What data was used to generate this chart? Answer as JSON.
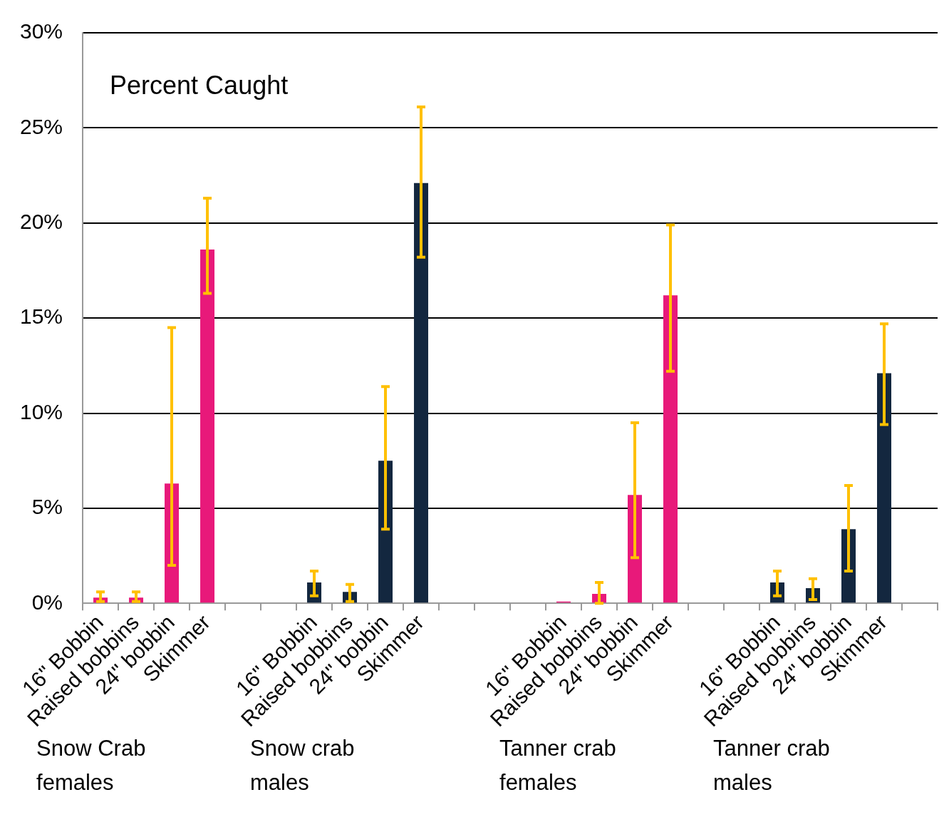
{
  "chart_data": {
    "type": "bar",
    "title": "Percent Caught",
    "categories": [
      "16\" Bobbin",
      "Raised bobbins",
      "24\" bobbin",
      "Skimmer",
      null,
      null,
      "16\" Bobbin",
      "Raised bobbins",
      "24\" bobbin",
      "Skimmer",
      null,
      null,
      null,
      "16\" Bobbin",
      "Raised bobbins",
      "24\" bobbin",
      "Skimmer",
      null,
      null,
      "16\" Bobbin",
      "Raised bobbins",
      "24\" bobbin",
      "Skimmer",
      null
    ],
    "values": [
      0.3,
      0.3,
      6.3,
      18.6,
      null,
      null,
      1.1,
      0.6,
      7.5,
      22.1,
      null,
      null,
      null,
      0.1,
      0.5,
      5.7,
      16.2,
      null,
      null,
      1.1,
      0.8,
      3.9,
      12.1,
      null
    ],
    "colors": [
      "#e8197a",
      "#e8197a",
      "#e8197a",
      "#e8197a",
      null,
      null,
      "#13273f",
      "#13273f",
      "#13273f",
      "#13273f",
      null,
      null,
      null,
      "#e8197a",
      "#e8197a",
      "#e8197a",
      "#e8197a",
      null,
      null,
      "#13273f",
      "#13273f",
      "#13273f",
      "#13273f",
      null
    ],
    "errors": [
      [
        0.1,
        0.6
      ],
      [
        0.1,
        0.6
      ],
      [
        2.0,
        14.5
      ],
      [
        16.3,
        21.3
      ],
      null,
      null,
      [
        0.4,
        1.7
      ],
      [
        0.1,
        1.0
      ],
      [
        3.9,
        11.4
      ],
      [
        18.2,
        26.1
      ],
      null,
      null,
      null,
      null,
      [
        0.0,
        1.1
      ],
      [
        2.4,
        9.5
      ],
      [
        12.2,
        19.9
      ],
      null,
      null,
      [
        0.4,
        1.7
      ],
      [
        0.2,
        1.3
      ],
      [
        1.7,
        6.2
      ],
      [
        9.4,
        14.7
      ],
      null
    ],
    "ylim": [
      0,
      30
    ],
    "yticks": [
      {
        "value": 0,
        "label": "0%"
      },
      {
        "value": 5,
        "label": "5%"
      },
      {
        "value": 10,
        "label": "10%"
      },
      {
        "value": 15,
        "label": "15%"
      },
      {
        "value": 20,
        "label": "20%"
      },
      {
        "value": 25,
        "label": "25%"
      },
      {
        "value": 30,
        "label": "30%"
      }
    ],
    "grid": "y",
    "legend": false,
    "annotations": [
      "Snow Crab females",
      "Snow crab males",
      "Tanner crab females",
      "Tanner crab males"
    ]
  }
}
